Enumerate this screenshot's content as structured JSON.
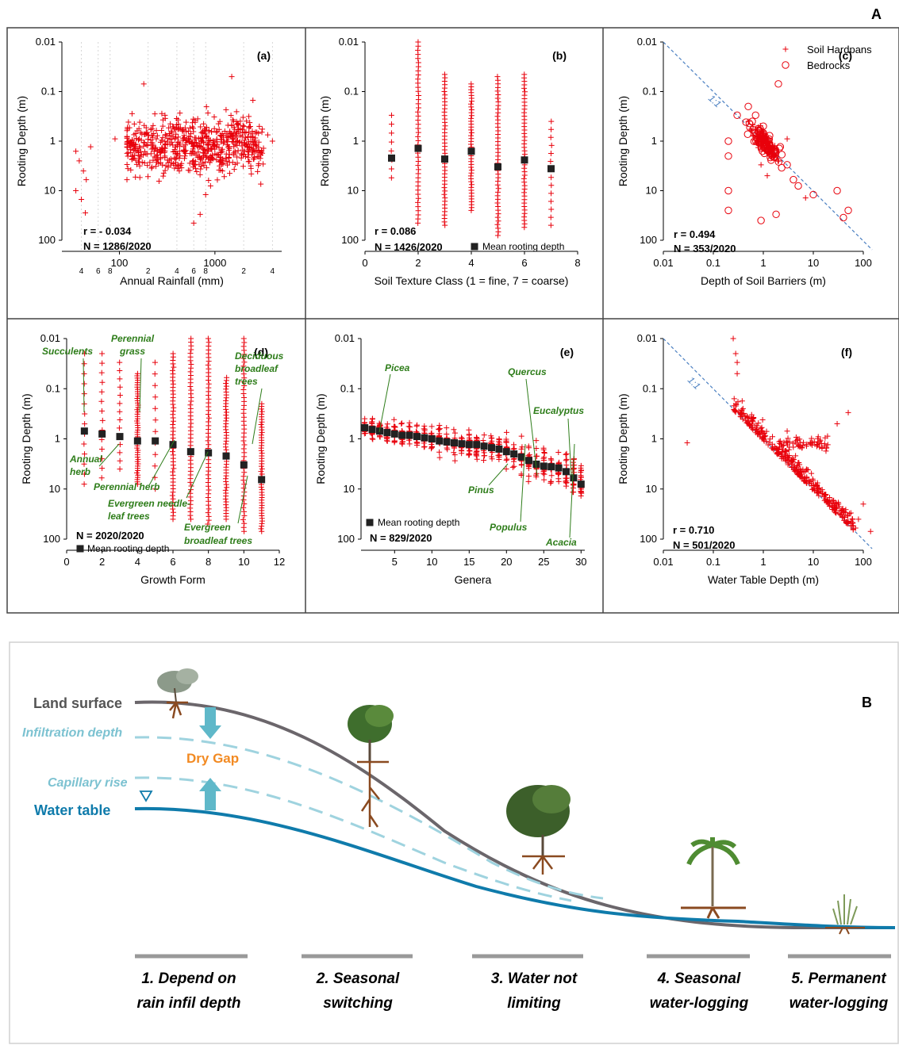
{
  "figure": {
    "panel_a_letter": "A",
    "panel_b_letter": "B"
  },
  "colors": {
    "marker": "#e8000b",
    "green_label": "#2e7d1a",
    "mean_marker": "#222222",
    "one_to_one": "#4a7fc1",
    "land": "#6b666b",
    "water": "#0f7bab",
    "light": "#9fd3df",
    "arrow": "#5fb8c9",
    "dry_gap": "#f28a22"
  },
  "panels": {
    "a": {
      "letter": "(a)",
      "ylabel": "Rooting Depth (m)",
      "xlabel": "Annual Rainfall (mm)",
      "stat_r": "r = - 0.034",
      "stat_n": "N = 1286/2020",
      "y_ticks": [
        "0.01",
        "0.1",
        "1",
        "10",
        "100"
      ],
      "x_ticks": [
        "100",
        "1000"
      ],
      "x_minor_ticks": [
        "4",
        "6",
        "8",
        "2",
        "4",
        "6",
        "8",
        "2",
        "4"
      ]
    },
    "b": {
      "letter": "(b)",
      "ylabel": "Rooting Depth (m)",
      "xlabel": "Soil Texture Class (1 = fine, 7 = coarse)",
      "stat_r": "r = 0.086",
      "stat_n": "N = 1426/2020",
      "legend": "Mean rooting depth",
      "y_ticks": [
        "0.01",
        "0.1",
        "1",
        "10",
        "100"
      ],
      "x_ticks": [
        "0",
        "2",
        "4",
        "6",
        "8"
      ]
    },
    "c": {
      "letter": "(c)",
      "ylabel": "Rooting Depth (m)",
      "xlabel": "Depth of Soil Barriers (m)",
      "stat_r": "r = 0.494",
      "stat_n": "N = 353/2020",
      "legend_1": "Soil Hardpans",
      "legend_2": "Bedrocks",
      "line_label": "1:1",
      "y_ticks": [
        "0.01",
        "0.1",
        "1",
        "10",
        "100"
      ],
      "x_ticks": [
        "0.01",
        "0.1",
        "1",
        "10",
        "100"
      ]
    },
    "d": {
      "letter": "(d)",
      "ylabel": "Rooting Depth (m)",
      "xlabel": "Growth Form",
      "stat_n": "N = 2020/2020",
      "legend": "Mean rooting depth",
      "y_ticks": [
        "0.01",
        "0.1",
        "1",
        "10",
        "100"
      ],
      "x_ticks": [
        "0",
        "2",
        "4",
        "6",
        "8",
        "10",
        "12"
      ],
      "labels": {
        "succulents": "Succulents",
        "perennial_grass_1": "Perennial",
        "perennial_grass_2": "grass",
        "deciduous_1": "Deciduous",
        "deciduous_2": "broadleaf",
        "deciduous_3": "trees",
        "annual_1": "Annual",
        "annual_2": "herb",
        "perennial_herb": "Perennial herb",
        "evergreen_needle_1": "Evergreen needle-",
        "evergreen_needle_2": "leaf trees",
        "evergreen_broad_1": "Evergreen",
        "evergreen_broad_2": "broadleaf trees"
      }
    },
    "e": {
      "letter": "(e)",
      "ylabel": "Rooting Depth (m)",
      "xlabel": "Genera",
      "stat_n": "N = 829/2020",
      "legend": "Mean rooting depth",
      "y_ticks": [
        "0.01",
        "0.1",
        "1",
        "10",
        "100"
      ],
      "x_ticks": [
        "5",
        "10",
        "15",
        "20",
        "25",
        "30"
      ],
      "labels": {
        "picea": "Picea",
        "quercus": "Quercus",
        "eucalyptus": "Eucalyptus",
        "pinus": "Pinus",
        "populus": "Populus",
        "acacia": "Acacia"
      }
    },
    "f": {
      "letter": "(f)",
      "ylabel": "Rooting Depth (m)",
      "xlabel": "Water Table Depth (m)",
      "stat_r": "r = 0.710",
      "stat_n": "N = 501/2020",
      "line_label": "1:1",
      "y_ticks": [
        "0.01",
        "0.1",
        "1",
        "10",
        "100"
      ],
      "x_ticks": [
        "0.01",
        "0.1",
        "1",
        "10",
        "100"
      ]
    }
  },
  "diagram": {
    "land_surface": "Land surface",
    "infiltration_depth": "Infiltration depth",
    "dry_gap": "Dry Gap",
    "capillary_rise": "Capillary rise",
    "water_table": "Water table",
    "stages": [
      {
        "line1": "1. Depend on",
        "line2": "rain infil depth"
      },
      {
        "line1": "2. Seasonal",
        "line2": "switching"
      },
      {
        "line1": "3. Water not",
        "line2": "limiting"
      },
      {
        "line1": "4. Seasonal",
        "line2": "water-logging"
      },
      {
        "line1": "5. Permanent",
        "line2": "water-logging"
      }
    ]
  },
  "chart_data": [
    {
      "panel": "a",
      "type": "scatter",
      "title": "(a)",
      "xlabel": "Annual Rainfall (mm)",
      "ylabel": "Rooting Depth (m)",
      "x_scale": "log",
      "y_scale": "log",
      "y_inverted": true,
      "xlim": [
        25,
        5000
      ],
      "ylim": [
        0.01,
        100
      ],
      "stats": {
        "r": -0.034,
        "n": "1286/2020"
      },
      "series": [
        {
          "name": "",
          "marker": "+",
          "x": [
            35,
            38,
            42,
            45,
            50,
            35,
            40,
            44,
            300,
            180,
            1500,
            90,
            2500,
            4000,
            120,
            600,
            700,
            800,
            900,
            1200
          ],
          "y": [
            1.6,
            2.5,
            4,
            6,
            1.3,
            10,
            15,
            28,
            0.3,
            0.07,
            0.05,
            0.9,
            0.15,
            1,
            6,
            45,
            30,
            12,
            8,
            4
          ]
        }
      ]
    },
    {
      "panel": "b",
      "type": "scatter",
      "title": "(b)",
      "xlabel": "Soil Texture Class (1 = fine, 7 = coarse)",
      "ylabel": "Rooting Depth (m)",
      "y_scale": "log",
      "y_inverted": true,
      "xlim": [
        0,
        8
      ],
      "ylim": [
        0.01,
        100
      ],
      "stats": {
        "r": 0.086,
        "n": "1426/2020"
      },
      "series": [
        {
          "name": "Mean rooting depth",
          "x": [
            1,
            2,
            3,
            4,
            5,
            6,
            7
          ],
          "y": [
            2.2,
            1.4,
            2.3,
            1.6,
            3.3,
            2.4,
            3.6
          ]
        }
      ],
      "ranges": [
        {
          "x": 1,
          "y_min": 0.3,
          "y_max": 5.5
        },
        {
          "x": 2,
          "y_min": 0.01,
          "y_max": 45
        },
        {
          "x": 3,
          "y_min": 0.045,
          "y_max": 50
        },
        {
          "x": 4,
          "y_min": 0.07,
          "y_max": 25
        },
        {
          "x": 5,
          "y_min": 0.05,
          "y_max": 80
        },
        {
          "x": 6,
          "y_min": 0.045,
          "y_max": 55
        },
        {
          "x": 7,
          "y_min": 0.4,
          "y_max": 50
        }
      ]
    },
    {
      "panel": "c",
      "type": "scatter",
      "title": "(c)",
      "xlabel": "Depth of Soil Barriers (m)",
      "ylabel": "Rooting Depth (m)",
      "x_scale": "log",
      "y_scale": "log",
      "y_inverted": true,
      "xlim": [
        0.005,
        150
      ],
      "ylim": [
        0.01,
        100
      ],
      "stats": {
        "r": 0.494,
        "n": "353/2020"
      },
      "reference_line": "1:1",
      "series": [
        {
          "name": "Soil Hardpans",
          "marker": "+",
          "x": [
            0.5,
            0.8,
            1,
            1.3,
            1.6,
            2,
            3,
            0.9,
            1.2,
            7
          ],
          "y": [
            0.4,
            0.8,
            1,
            1.5,
            2,
            2.5,
            0.9,
            3,
            5,
            14
          ]
        },
        {
          "name": "Bedrocks",
          "marker": "o",
          "x": [
            0.2,
            0.2,
            0.2,
            0.2,
            0.5,
            0.7,
            1,
            1.5,
            2,
            3,
            5,
            10,
            30,
            40,
            50,
            0.9,
            0.3,
            0.6,
            1.8,
            4
          ],
          "y": [
            1,
            2,
            10,
            25,
            0.2,
            0.3,
            0.5,
            2,
            0.07,
            3,
            8,
            12,
            10,
            35,
            25,
            40,
            0.3,
            0.4,
            30,
            6
          ]
        }
      ]
    },
    {
      "panel": "d",
      "type": "scatter",
      "title": "(d)",
      "xlabel": "Growth Form",
      "ylabel": "Rooting Depth (m)",
      "y_scale": "log",
      "y_inverted": true,
      "xlim": [
        0,
        12
      ],
      "ylim": [
        0.01,
        100
      ],
      "stats": {
        "n": "2020/2020"
      },
      "series": [
        {
          "name": "Mean rooting depth",
          "x": [
            1,
            2,
            3,
            4,
            5,
            6,
            7,
            8,
            9,
            10,
            11
          ],
          "y": [
            0.7,
            0.8,
            0.9,
            1.1,
            1.1,
            1.3,
            1.8,
            1.9,
            2.2,
            3.3,
            6.5
          ]
        }
      ],
      "ranges": [
        {
          "x": 1,
          "y_min": 0.02,
          "y_max": 8
        },
        {
          "x": 2,
          "y_min": 0.02,
          "y_max": 6
        },
        {
          "x": 3,
          "y_min": 0.03,
          "y_max": 4
        },
        {
          "x": 4,
          "y_min": 0.05,
          "y_max": 8
        },
        {
          "x": 5,
          "y_min": 0.03,
          "y_max": 10
        },
        {
          "x": 6,
          "y_min": 0.02,
          "y_max": 40
        },
        {
          "x": 7,
          "y_min": 0.01,
          "y_max": 40
        },
        {
          "x": 8,
          "y_min": 0.01,
          "y_max": 50
        },
        {
          "x": 9,
          "y_min": 0.06,
          "y_max": 40
        },
        {
          "x": 10,
          "y_min": 0.01,
          "y_max": 70
        },
        {
          "x": 11,
          "y_min": 0.2,
          "y_max": 70
        }
      ]
    },
    {
      "panel": "e",
      "type": "scatter",
      "title": "(e)",
      "xlabel": "Genera",
      "ylabel": "Rooting Depth (m)",
      "y_scale": "log",
      "y_inverted": true,
      "xlim": [
        0.5,
        30.5
      ],
      "ylim": [
        0.01,
        100
      ],
      "stats": {
        "n": "829/2020"
      },
      "series": [
        {
          "name": "Mean rooting depth",
          "x": [
            1,
            2,
            3,
            4,
            5,
            6,
            7,
            8,
            9,
            10,
            11,
            12,
            13,
            14,
            15,
            16,
            17,
            18,
            19,
            20,
            21,
            22,
            23,
            24,
            25,
            26,
            27,
            28,
            29,
            30
          ],
          "y": [
            0.6,
            0.65,
            0.7,
            0.75,
            0.8,
            0.85,
            0.85,
            0.9,
            0.95,
            1,
            1.1,
            1.15,
            1.2,
            1.25,
            1.3,
            1.3,
            1.4,
            1.5,
            1.6,
            1.8,
            2,
            2.3,
            2.7,
            3.2,
            3.5,
            3.6,
            3.8,
            4.5,
            6,
            8
          ]
        }
      ]
    },
    {
      "panel": "f",
      "type": "scatter",
      "title": "(f)",
      "xlabel": "Water Table Depth (m)",
      "ylabel": "Rooting Depth (m)",
      "x_scale": "log",
      "y_scale": "log",
      "y_inverted": true,
      "xlim": [
        0.005,
        150
      ],
      "ylim": [
        0.01,
        100
      ],
      "stats": {
        "r": 0.71,
        "n": "501/2020"
      },
      "reference_line": "1:1",
      "series": [
        {
          "name": "",
          "marker": "+",
          "x": [
            0.03,
            0.25,
            0.3,
            0.5,
            1,
            2,
            5,
            10,
            20,
            40,
            70,
            80,
            100,
            140,
            3,
            6,
            0.3,
            0.28,
            30,
            50
          ],
          "y": [
            1.2,
            0.01,
            0.05,
            0.5,
            1,
            2,
            5,
            10,
            20,
            30,
            60,
            40,
            20,
            70,
            0.7,
            1.5,
            0.03,
            0.02,
            0.5,
            0.3
          ]
        }
      ]
    }
  ]
}
